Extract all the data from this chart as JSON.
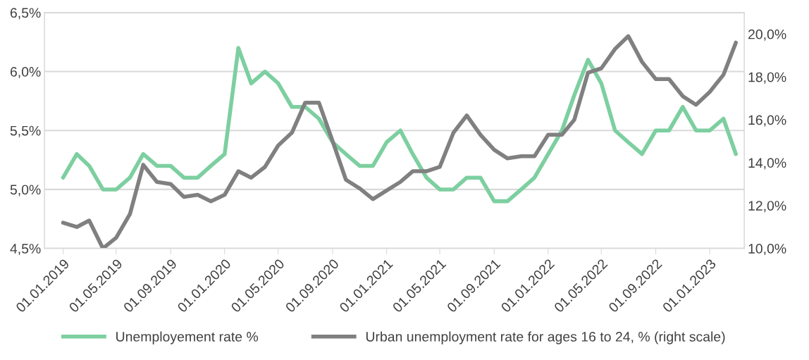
{
  "chart_data": {
    "type": "line",
    "x": [
      "2019-01",
      "2019-02",
      "2019-03",
      "2019-04",
      "2019-05",
      "2019-06",
      "2019-07",
      "2019-08",
      "2019-09",
      "2019-10",
      "2019-11",
      "2019-12",
      "2020-01",
      "2020-02",
      "2020-03",
      "2020-04",
      "2020-05",
      "2020-06",
      "2020-07",
      "2020-08",
      "2020-09",
      "2020-10",
      "2020-11",
      "2020-12",
      "2021-01",
      "2021-02",
      "2021-03",
      "2021-04",
      "2021-05",
      "2021-06",
      "2021-07",
      "2021-08",
      "2021-09",
      "2021-10",
      "2021-11",
      "2021-12",
      "2022-01",
      "2022-02",
      "2022-03",
      "2022-04",
      "2022-05",
      "2022-06",
      "2022-07",
      "2022-08",
      "2022-09",
      "2022-10",
      "2022-11",
      "2022-12",
      "2023-01",
      "2023-02",
      "2023-03"
    ],
    "series": [
      {
        "name": "Unemployement rate %",
        "color": "#7dcfa0",
        "values": [
          5.1,
          5.3,
          5.2,
          5.0,
          5.0,
          5.1,
          5.3,
          5.2,
          5.2,
          5.1,
          5.1,
          5.2,
          5.3,
          6.2,
          5.9,
          6.0,
          5.9,
          5.7,
          5.7,
          5.6,
          5.4,
          5.3,
          5.2,
          5.2,
          5.4,
          5.5,
          5.3,
          5.1,
          5.0,
          5.0,
          5.1,
          5.1,
          4.9,
          4.9,
          5.0,
          5.1,
          5.3,
          5.5,
          5.8,
          6.1,
          5.9,
          5.5,
          5.4,
          5.3,
          5.5,
          5.5,
          5.7,
          5.5,
          5.5,
          5.6,
          5.3
        ]
      },
      {
        "name": "Urban unemployment rate for ages 16 to 24, % (right scale)",
        "color": "#808080",
        "axis": "y2",
        "values": [
          11.2,
          11.0,
          11.3,
          10.0,
          10.5,
          11.6,
          13.9,
          13.1,
          13.0,
          12.4,
          12.5,
          12.2,
          12.5,
          13.6,
          13.3,
          13.8,
          14.8,
          15.4,
          16.8,
          16.8,
          15.0,
          13.2,
          12.8,
          12.3,
          12.7,
          13.1,
          13.6,
          13.6,
          13.8,
          15.4,
          16.2,
          15.3,
          14.6,
          14.2,
          14.3,
          14.3,
          15.3,
          15.3,
          16.0,
          18.2,
          18.4,
          19.3,
          19.9,
          18.7,
          17.9,
          17.9,
          17.1,
          16.7,
          17.3,
          18.1,
          19.6
        ]
      }
    ],
    "xlim": [
      "2018-11-20",
      "2023-03-20"
    ],
    "xticks": [
      {
        "value": "2019-01-01",
        "label": "01.01.2019"
      },
      {
        "value": "2019-05-01",
        "label": "01.05.2019"
      },
      {
        "value": "2019-09-01",
        "label": "01.09.2019"
      },
      {
        "value": "2020-01-01",
        "label": "01.01.2020"
      },
      {
        "value": "2020-05-01",
        "label": "01.05.2020"
      },
      {
        "value": "2020-09-01",
        "label": "01.09.2020"
      },
      {
        "value": "2021-01-01",
        "label": "01.01.2021"
      },
      {
        "value": "2021-05-01",
        "label": "01.05.2021"
      },
      {
        "value": "2021-09-01",
        "label": "01.09.2021"
      },
      {
        "value": "2022-01-01",
        "label": "01.01.2022"
      },
      {
        "value": "2022-05-01",
        "label": "01.05.2022"
      },
      {
        "value": "2022-09-01",
        "label": "01.09.2022"
      },
      {
        "value": "2023-01-01",
        "label": "01.01.2023"
      }
    ],
    "ylim": [
      4.5,
      6.5
    ],
    "yticks": [
      {
        "value": 4.5,
        "label": "4,5%"
      },
      {
        "value": 5.0,
        "label": "5,0%"
      },
      {
        "value": 5.5,
        "label": "5,5%"
      },
      {
        "value": 6.0,
        "label": "6,0%"
      },
      {
        "value": 6.5,
        "label": "6,5%"
      }
    ],
    "y2lim": [
      10,
      21
    ],
    "y2ticks": [
      {
        "value": 10,
        "label": "10,0%"
      },
      {
        "value": 12,
        "label": "12,0%"
      },
      {
        "value": 14,
        "label": "14,0%"
      },
      {
        "value": 16,
        "label": "16,0%"
      },
      {
        "value": 18,
        "label": "18,0%"
      },
      {
        "value": 20,
        "label": "20,0%"
      }
    ],
    "grid": "y",
    "legend": "bottom",
    "marker": "none",
    "line_style": "solid"
  }
}
